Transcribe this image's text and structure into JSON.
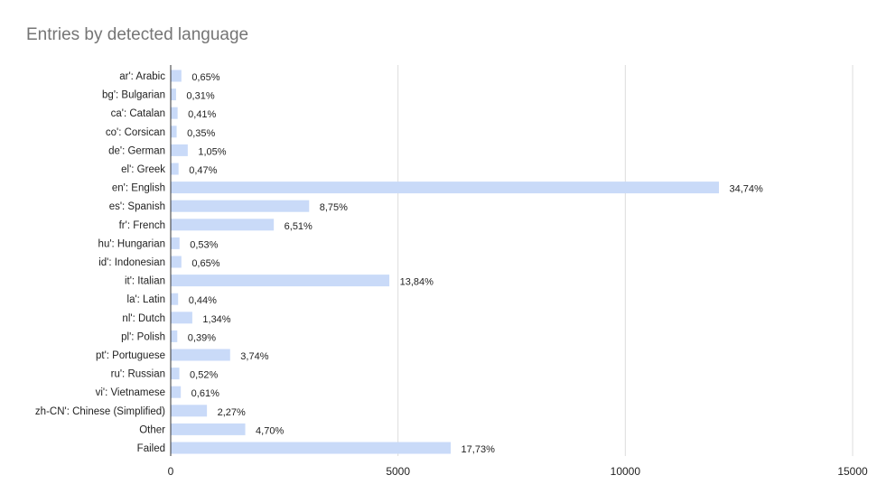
{
  "chart_data": {
    "type": "bar",
    "orientation": "horizontal",
    "title": "Entries by detected language",
    "xlabel": "",
    "ylabel": "",
    "xlim": [
      0,
      15000
    ],
    "x_ticks": [
      "0",
      "5000",
      "10000",
      "15000"
    ],
    "grid": true,
    "legend": "none",
    "bar_color": "#c9daf8",
    "categories": [
      "ar': Arabic",
      "bg': Bulgarian",
      "ca': Catalan",
      "co': Corsican",
      "de': German",
      "el': Greek",
      "en': English",
      "es': Spanish",
      "fr': French",
      "hu': Hungarian",
      "id': Indonesian",
      "it': Italian",
      "la': Latin",
      "nl': Dutch",
      "pl': Polish",
      "pt': Portuguese",
      "ru': Russian",
      "vi': Vietnamese",
      "zh-CN': Chinese (Simplified)",
      "Other",
      "Failed"
    ],
    "values": [
      225,
      108,
      142,
      121,
      365,
      163,
      12050,
      3035,
      2258,
      184,
      225,
      4800,
      153,
      465,
      135,
      1297,
      180,
      212,
      787,
      1630,
      6150
    ],
    "data_labels": [
      "0,65%",
      "0,31%",
      "0,41%",
      "0,35%",
      "1,05%",
      "0,47%",
      "34,74%",
      "8,75%",
      "6,51%",
      "0,53%",
      "0,65%",
      "13,84%",
      "0,44%",
      "1,34%",
      "0,39%",
      "3,74%",
      "0,52%",
      "0,61%",
      "2,27%",
      "4,70%",
      "17,73%"
    ]
  }
}
